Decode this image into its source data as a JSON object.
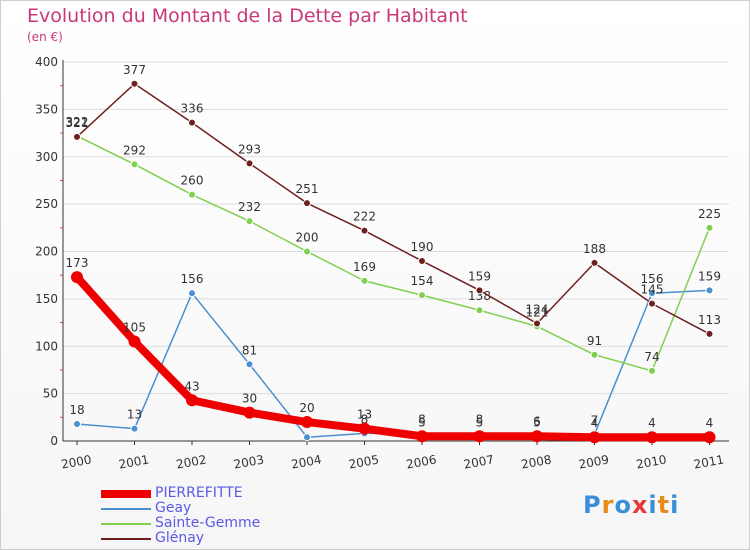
{
  "header": {
    "title": "Evolution du Montant de la Dette par Habitant",
    "subtitle": "(en €)"
  },
  "logo": {
    "text": "Proxiti",
    "letter_colors": [
      "#3b8fd8",
      "#e88a1a",
      "#3b8fd8",
      "#e83a3a",
      "#3b8fd8",
      "#e88a1a",
      "#3b8fd8"
    ]
  },
  "colors": {
    "title": "#c8387a",
    "axis": "#333333",
    "grid": "#dddddd",
    "legend_text": "#5a5ae6"
  },
  "chart_data": {
    "type": "line",
    "title": "Evolution du Montant de la Dette par Habitant",
    "subtitle": "(en €)",
    "xlabel": "",
    "ylabel": "",
    "x": [
      "2000",
      "2001",
      "2002",
      "2003",
      "2004",
      "2005",
      "2006",
      "2007",
      "2008",
      "2009",
      "2010",
      "2011"
    ],
    "ylim": [
      0,
      400
    ],
    "yticks": [
      0,
      50,
      100,
      150,
      200,
      250,
      300,
      350,
      400
    ],
    "grid": true,
    "legend_position": "bottom-left",
    "series": [
      {
        "name": "PIERREFITTE",
        "color": "#ee0000",
        "thick": true,
        "values": [
          173,
          105,
          43,
          30,
          20,
          13,
          5,
          5,
          5,
          4,
          4,
          4
        ]
      },
      {
        "name": "Geay",
        "color": "#4a8fd0",
        "thick": false,
        "values": [
          18,
          13,
          156,
          81,
          4,
          8,
          8,
          8,
          6,
          7,
          156,
          159
        ]
      },
      {
        "name": "Sainte-Gemme",
        "color": "#80d050",
        "thick": false,
        "values": [
          322,
          292,
          260,
          232,
          200,
          169,
          154,
          138,
          121,
          91,
          74,
          225
        ]
      },
      {
        "name": "Glénay",
        "color": "#6e1f1f",
        "thick": false,
        "values": [
          321,
          377,
          336,
          293,
          251,
          222,
          190,
          159,
          124,
          188,
          145,
          113
        ]
      }
    ]
  }
}
